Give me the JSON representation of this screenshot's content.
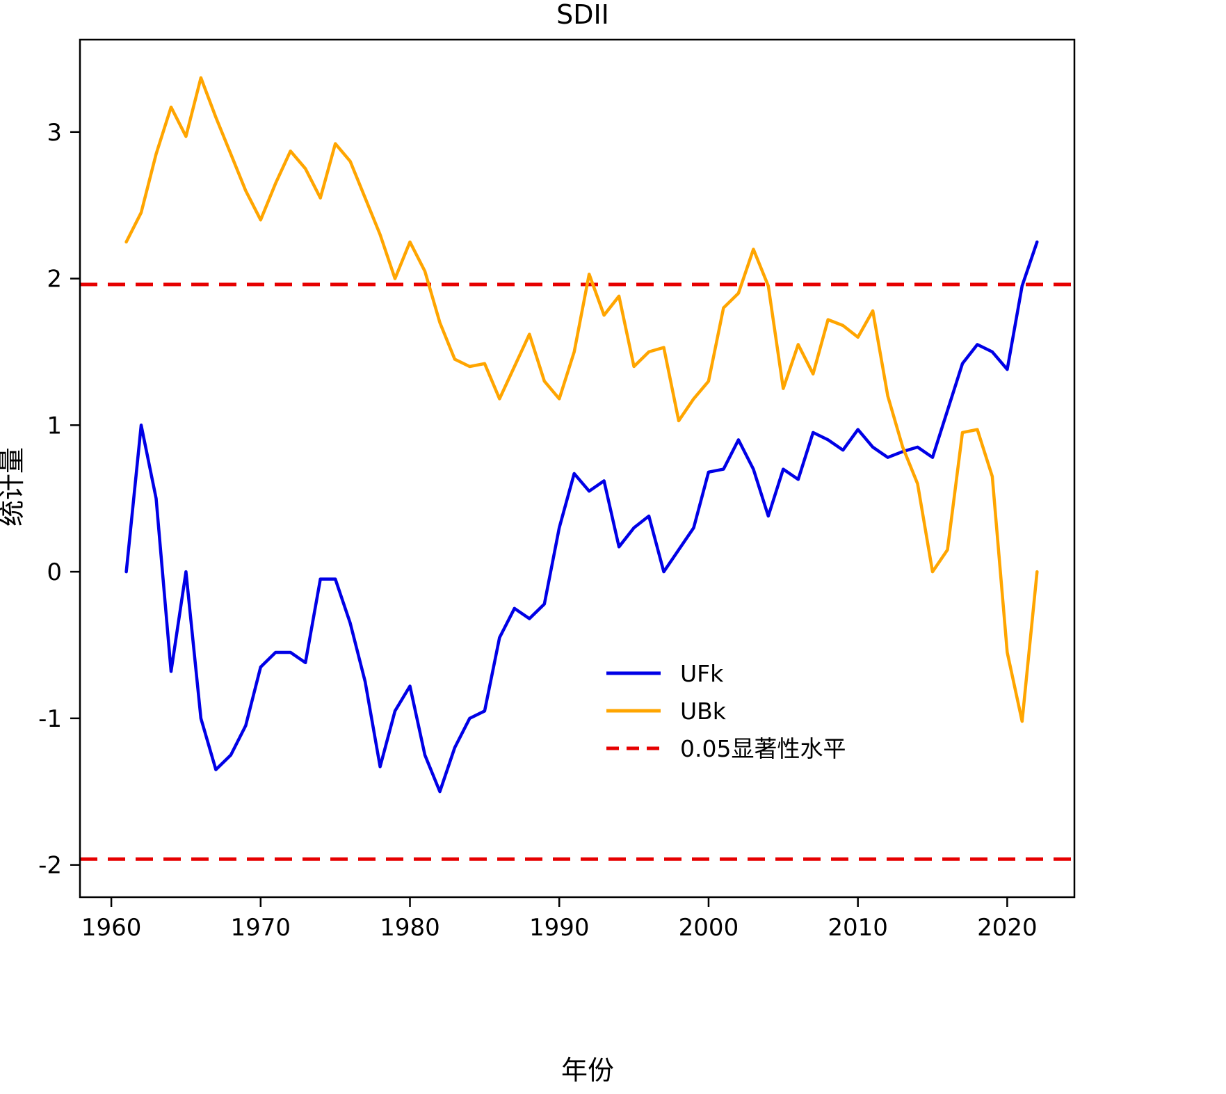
{
  "title": "SDII",
  "chart_data": {
    "type": "line",
    "title": "SDII",
    "xlabel": "年份",
    "ylabel": "统计量",
    "xlim": [
      1957.9,
      2024.5
    ],
    "ylim": [
      -2.22,
      3.63
    ],
    "xticks": [
      1960,
      1970,
      1980,
      1990,
      2000,
      2010,
      2020
    ],
    "yticks": [
      -2,
      -1,
      0,
      1,
      2,
      3
    ],
    "grid": false,
    "x": [
      1961,
      1962,
      1963,
      1964,
      1965,
      1966,
      1967,
      1968,
      1969,
      1970,
      1971,
      1972,
      1973,
      1974,
      1975,
      1976,
      1977,
      1978,
      1979,
      1980,
      1981,
      1982,
      1983,
      1984,
      1985,
      1986,
      1987,
      1988,
      1989,
      1990,
      1991,
      1992,
      1993,
      1994,
      1995,
      1996,
      1997,
      1998,
      1999,
      2000,
      2001,
      2002,
      2003,
      2004,
      2005,
      2006,
      2007,
      2008,
      2009,
      2010,
      2011,
      2012,
      2013,
      2014,
      2015,
      2016,
      2017,
      2018,
      2019,
      2020,
      2021,
      2022
    ],
    "series": [
      {
        "name": "UFk",
        "color": "#0000e6",
        "style": "solid",
        "values": [
          0.0,
          1.0,
          0.5,
          -0.68,
          0.0,
          -1.0,
          -1.35,
          -1.25,
          -1.05,
          -0.65,
          -0.55,
          -0.55,
          -0.62,
          -0.05,
          -0.05,
          -0.35,
          -0.75,
          -1.33,
          -0.95,
          -0.78,
          -1.25,
          -1.5,
          -1.2,
          -1.0,
          -0.95,
          -0.45,
          -0.25,
          -0.32,
          -0.22,
          0.3,
          0.67,
          0.55,
          0.62,
          0.17,
          0.3,
          0.38,
          0.0,
          0.15,
          0.3,
          0.68,
          0.7,
          0.9,
          0.7,
          0.38,
          0.7,
          0.63,
          0.95,
          0.9,
          0.83,
          0.97,
          0.85,
          0.78,
          0.82,
          0.85,
          0.78,
          1.1,
          1.42,
          1.55,
          1.5,
          1.38,
          1.95,
          2.25
        ]
      },
      {
        "name": "UBk",
        "color": "#ffa500",
        "style": "solid",
        "values": [
          2.25,
          2.45,
          2.85,
          3.17,
          2.97,
          3.37,
          3.1,
          2.85,
          2.6,
          2.4,
          2.65,
          2.87,
          2.75,
          2.55,
          2.92,
          2.8,
          2.55,
          2.3,
          2.0,
          2.25,
          2.05,
          1.7,
          1.45,
          1.4,
          1.42,
          1.18,
          1.4,
          1.62,
          1.3,
          1.18,
          1.5,
          2.03,
          1.75,
          1.88,
          1.4,
          1.5,
          1.53,
          1.03,
          1.18,
          1.3,
          1.8,
          1.9,
          2.2,
          1.95,
          1.25,
          1.55,
          1.35,
          1.72,
          1.68,
          1.6,
          1.78,
          1.2,
          0.85,
          0.6,
          0.0,
          0.15,
          0.95,
          0.97,
          0.65,
          -0.55,
          -1.02,
          0.0
        ]
      }
    ],
    "reference_lines": [
      {
        "label": "0.05显著性水平",
        "y": 1.96,
        "color": "#e60000",
        "style": "dashed"
      },
      {
        "label": "0.05显著性水平",
        "y": -1.96,
        "color": "#e60000",
        "style": "dashed"
      }
    ],
    "legend": {
      "position": "center-right-lower",
      "entries": [
        {
          "label": "UFk",
          "color": "#0000e6",
          "style": "solid"
        },
        {
          "label": "UBk",
          "color": "#ffa500",
          "style": "solid"
        },
        {
          "label": "0.05显著性水平",
          "color": "#e60000",
          "style": "dashed"
        }
      ]
    }
  }
}
